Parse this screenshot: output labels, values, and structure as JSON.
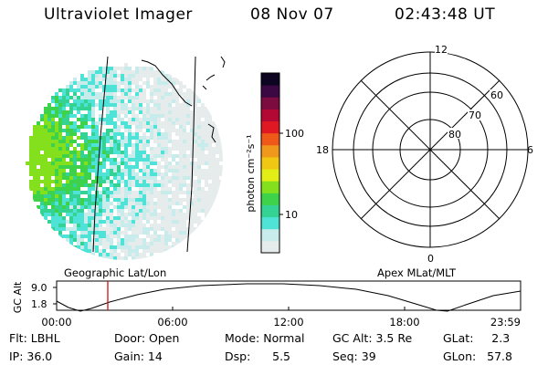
{
  "header": {
    "app": "Ultraviolet Imager",
    "date": "08 Nov 07",
    "time": "02:43:48 UT"
  },
  "geo_label": "Geographic Lat/Lon",
  "apex_label": "Apex MLat/MLT",
  "colorbar": {
    "unit_label": "photon cm⁻²s⁻¹",
    "ticks": [
      "100",
      "10"
    ],
    "colors": [
      "#e6ecec",
      "#c8ecec",
      "#4fe3d8",
      "#34d394",
      "#3ed24b",
      "#84e01c",
      "#e2ee16",
      "#f0c814",
      "#f0981c",
      "#ee5818",
      "#e01824",
      "#b40834",
      "#7c0c40",
      "#3c0844",
      "#0c0420"
    ]
  },
  "polar": {
    "clock_labels": {
      "top": "12",
      "left": "18",
      "right": "6",
      "bottom": "0"
    },
    "ring_labels": [
      "60",
      "70",
      "80"
    ]
  },
  "alt_plot": {
    "ylabel": "GC Alt",
    "yticks": [
      "9.0",
      "1.8"
    ],
    "xticks": [
      "00:00",
      "06:00",
      "12:00",
      "18:00",
      "23:59"
    ],
    "current_time_color": "#d01010"
  },
  "info": {
    "flt": "Flt: LBHL",
    "ip": "IP: 36.0",
    "door": "Door: Open",
    "gain": "Gain: 14",
    "mode": "Mode: Normal",
    "dsp": "Dsp:      5.5",
    "gcalt": "GC Alt: 3.5 Re",
    "seq": "Seq: 39",
    "glat": "GLat:     2.3",
    "glon": "GLon:   57.8"
  }
}
